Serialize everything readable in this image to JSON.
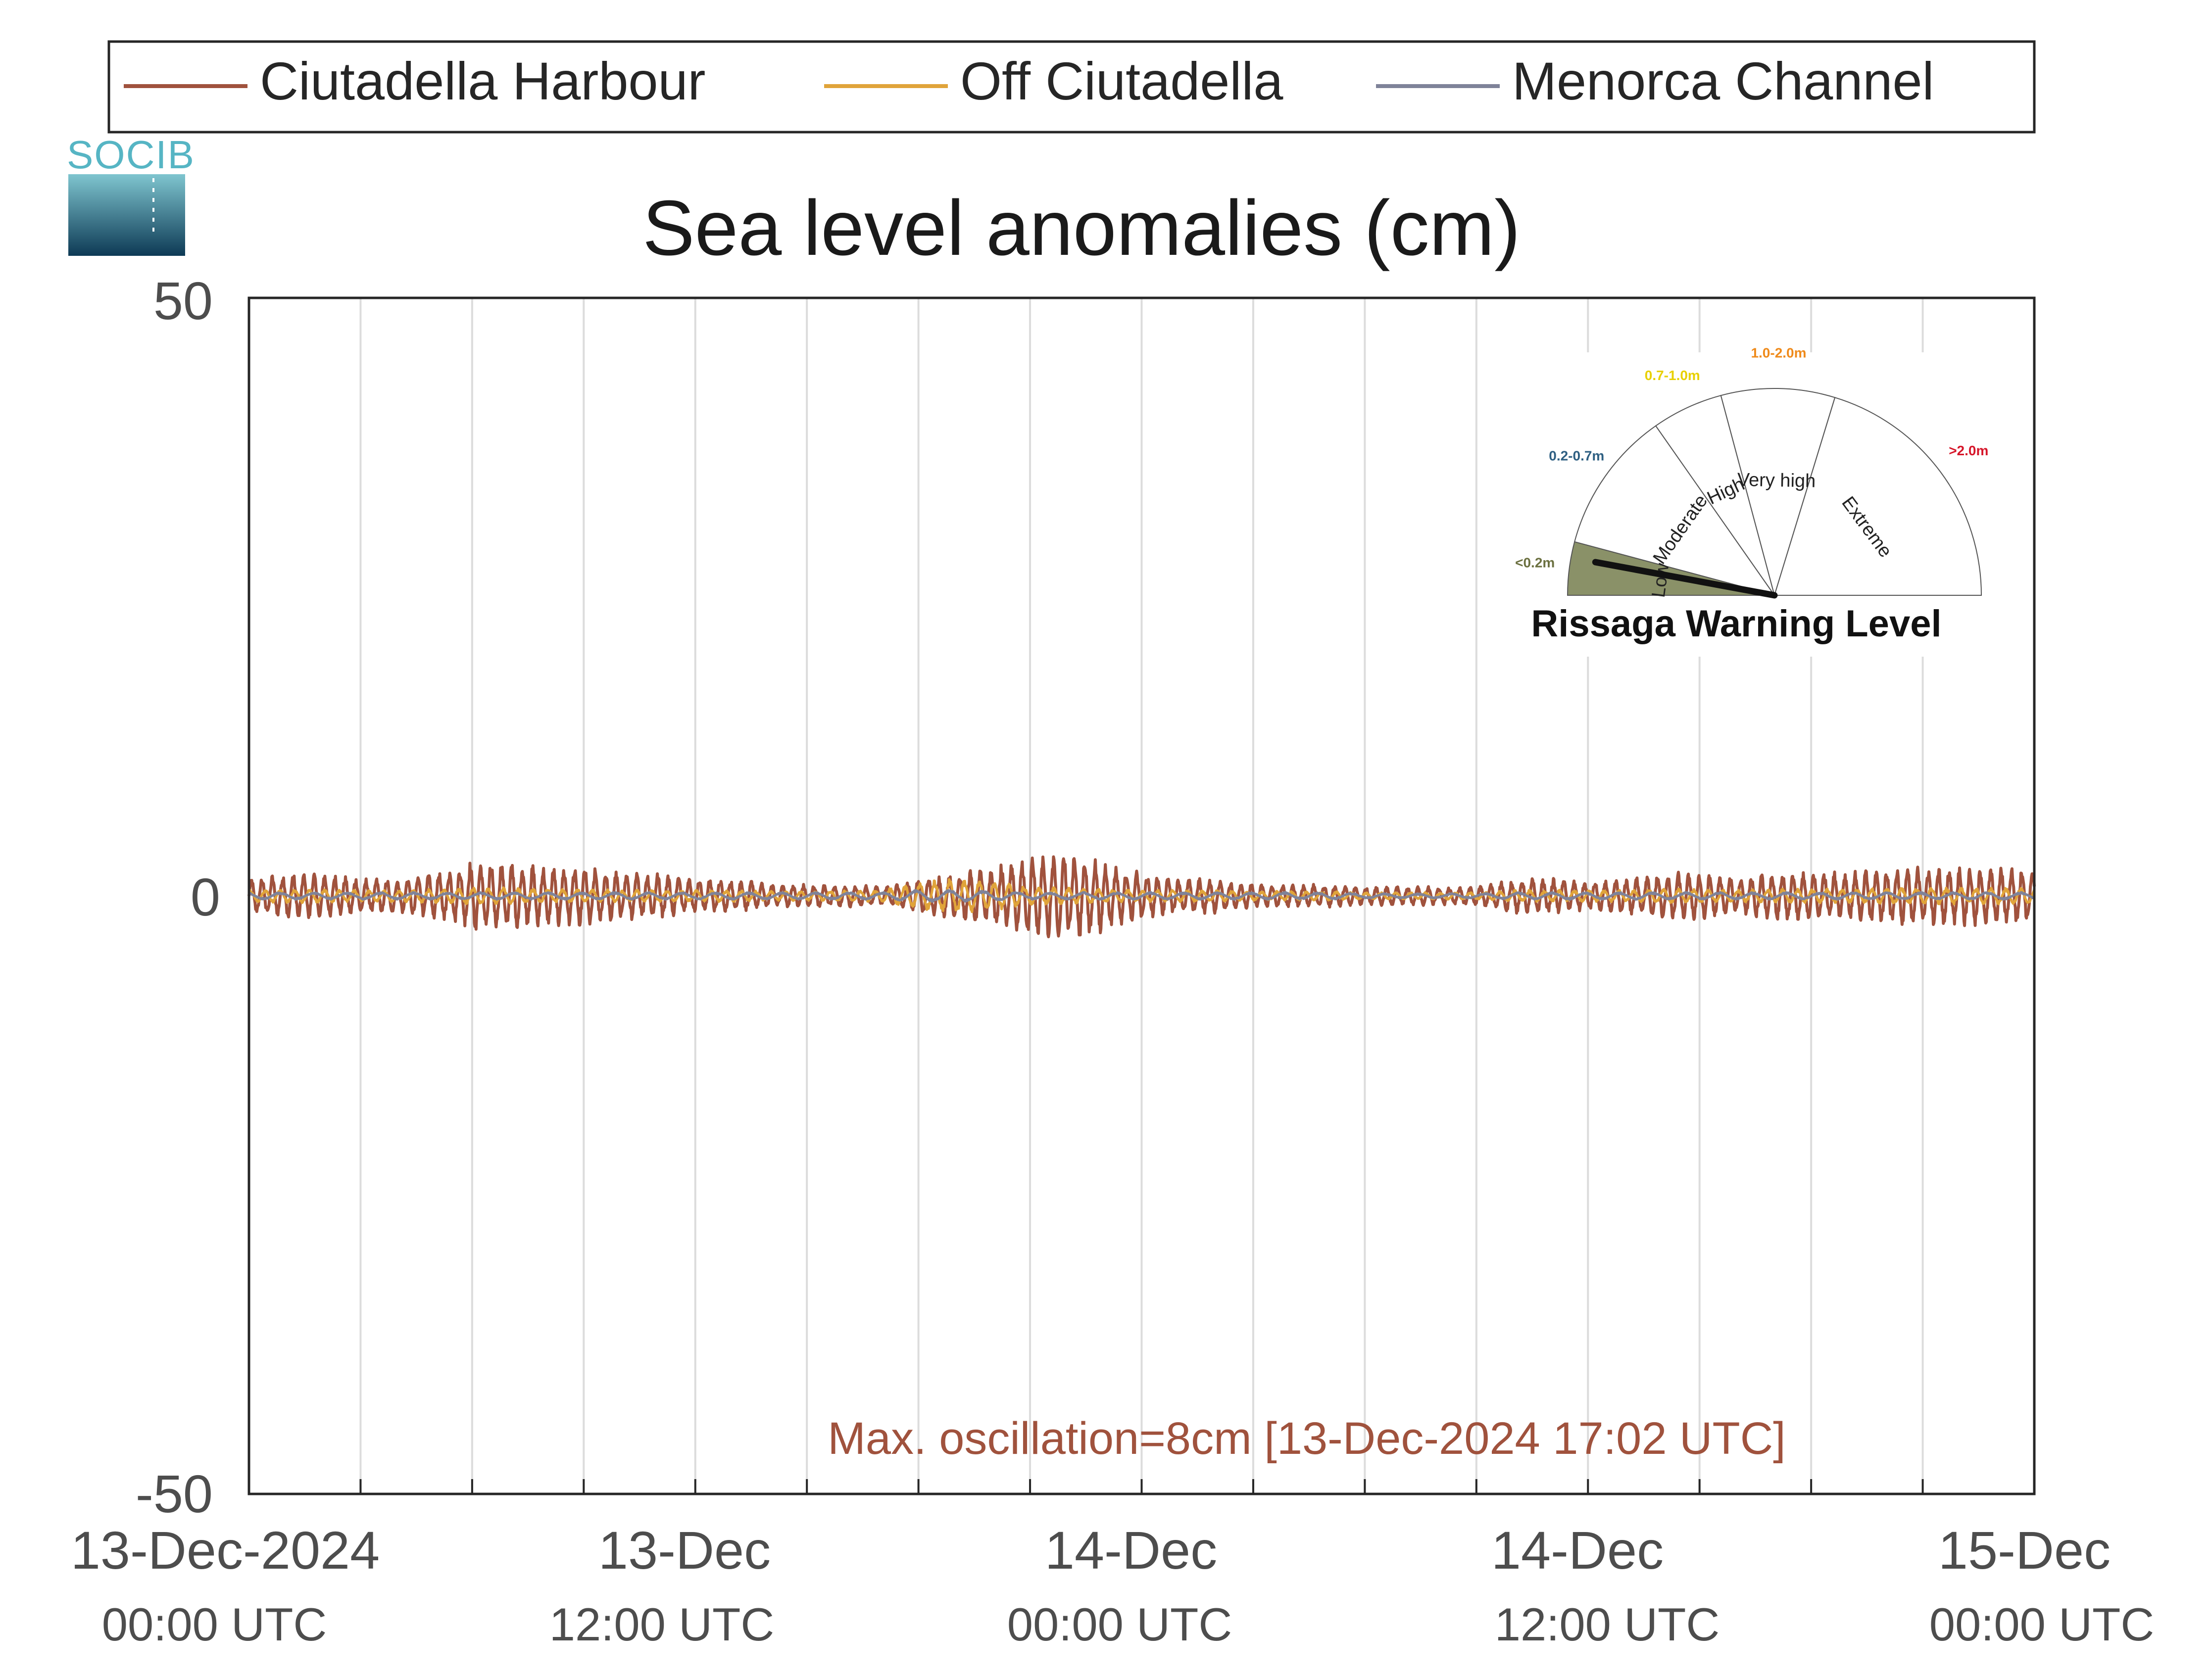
{
  "legend": {
    "items": [
      {
        "label": "Ciutadella Harbour",
        "color": "#a0523d"
      },
      {
        "label": "Off Ciutadella",
        "color": "#e0a43a"
      },
      {
        "label": "Menorca Channel",
        "color": "#7f8399"
      }
    ]
  },
  "logo": {
    "text": "SOCIB"
  },
  "chart_data": {
    "type": "line",
    "title": "Sea level anomalies (cm)",
    "xlabel": "",
    "ylabel": "",
    "ylim": [
      -50,
      50
    ],
    "yticks": [
      50,
      0,
      -50
    ],
    "xlim": [
      "2024-12-13 00:00 UTC",
      "2024-12-15 00:00 UTC"
    ],
    "x_hours_span": 48,
    "grid": "vertical every 3 hours",
    "xticks": [
      {
        "line1": "13-Dec-2024",
        "line2": "00:00 UTC"
      },
      {
        "line1": "13-Dec",
        "line2": "12:00 UTC"
      },
      {
        "line1": "14-Dec",
        "line2": "00:00 UTC"
      },
      {
        "line1": "14-Dec",
        "line2": "12:00 UTC"
      },
      {
        "line1": "15-Dec",
        "line2": "00:00 UTC"
      }
    ],
    "series": [
      {
        "name": "Ciutadella Harbour",
        "color": "#a0523d",
        "envelope_hourly_cm": [
          1.5,
          2,
          2,
          1.5,
          1.5,
          2,
          3,
          3,
          2.5,
          2.5,
          2,
          2,
          1.5,
          1.5,
          1,
          1,
          1,
          0.8,
          1.5,
          2,
          2.5,
          3.5,
          4,
          3,
          2,
          1.5,
          1.5,
          1,
          1,
          1,
          0.8,
          0.8,
          0.8,
          0.8,
          1.5,
          1.5,
          1.2,
          1.5,
          2,
          2,
          1.5,
          2,
          2.2,
          2,
          2.5,
          2.5,
          2.5,
          2.5
        ]
      },
      {
        "name": "Off Ciutadella",
        "color": "#e0a43a",
        "envelope_hourly_cm": [
          0.5,
          0.6,
          0.6,
          0.5,
          0.5,
          0.6,
          0.7,
          0.7,
          0.6,
          0.6,
          0.5,
          0.5,
          0.5,
          0.5,
          0.4,
          0.4,
          0.5,
          0.5,
          1.2,
          1.5,
          1.2,
          0.8,
          0.7,
          0.6,
          0.5,
          0.5,
          0.5,
          0.4,
          0.4,
          0.4,
          0.3,
          0.3,
          0.3,
          0.3,
          0.5,
          0.5,
          0.5,
          0.5,
          0.6,
          0.6,
          0.5,
          0.6,
          0.6,
          0.6,
          0.7,
          0.7,
          0.7,
          0.7
        ]
      },
      {
        "name": "Menorca Channel",
        "color": "#7f8399",
        "envelope_hourly_cm": [
          0.3,
          0.3,
          0.3,
          0.3,
          0.3,
          0.3,
          0.3,
          0.3,
          0.3,
          0.3,
          0.3,
          0.3,
          0.3,
          0.3,
          0.3,
          0.3,
          0.3,
          0.3,
          0.5,
          0.5,
          0.4,
          0.3,
          0.3,
          0.3,
          0.3,
          0.3,
          0.3,
          0.3,
          0.3,
          0.3,
          0.2,
          0.2,
          0.2,
          0.2,
          0.3,
          0.3,
          0.3,
          0.3,
          0.3,
          0.3,
          0.3,
          0.3,
          0.3,
          0.3,
          0.3,
          0.3,
          0.3,
          0.3
        ]
      }
    ],
    "annotation": {
      "text": "Max. oscillation=8cm [13-Dec-2024 17:02 UTC]",
      "color": "#a0523d"
    }
  },
  "gauge": {
    "title": "Rissaga Warning Level",
    "needle_level": "Low",
    "sectors": [
      {
        "label": "Low",
        "range": "<0.2m",
        "range_color": "#6b7040",
        "fill": "#8a9168"
      },
      {
        "label": "Moderate",
        "range": "0.2-0.7m",
        "range_color": "#2e5f82",
        "fill": "#ffffff"
      },
      {
        "label": "High",
        "range": "0.7-1.0m",
        "range_color": "#e8d000",
        "fill": "#ffffff"
      },
      {
        "label": "Very high",
        "range": "1.0-2.0m",
        "range_color": "#ef8a1a",
        "fill": "#ffffff"
      },
      {
        "label": "Extreme",
        "range": ">2.0m",
        "range_color": "#d6162a",
        "fill": "#ffffff"
      }
    ]
  }
}
